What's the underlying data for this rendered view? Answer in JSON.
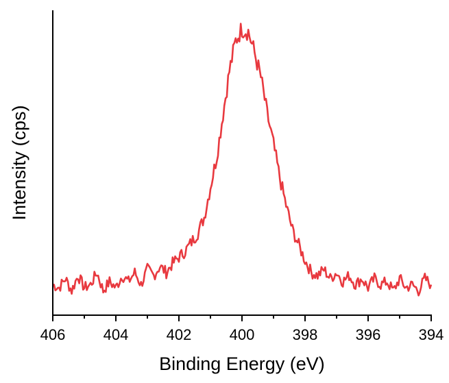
{
  "chart_data": {
    "type": "line",
    "title": "",
    "xlabel": "Binding Energy (eV)",
    "ylabel": "Intensity (cps)",
    "xlim": [
      406,
      394
    ],
    "x_reversed": true,
    "ylim": [
      0,
      1.0
    ],
    "y_tick_labels_visible": false,
    "x_ticks": [
      406,
      404,
      402,
      400,
      398,
      396,
      394
    ],
    "x_tick_labels": [
      "406",
      "404",
      "402",
      "400",
      "398",
      "396",
      "394"
    ],
    "grid": false,
    "legend": "none",
    "series": [
      {
        "color": "#e8393f",
        "x": [
          406.0,
          405.8,
          405.6,
          405.4,
          405.2,
          405.0,
          404.8,
          404.6,
          404.4,
          404.2,
          404.0,
          403.8,
          403.6,
          403.4,
          403.2,
          403.0,
          402.8,
          402.6,
          402.4,
          402.2,
          402.0,
          401.8,
          401.6,
          401.4,
          401.2,
          401.0,
          400.8,
          400.6,
          400.4,
          400.2,
          400.0,
          399.8,
          399.6,
          399.4,
          399.2,
          399.0,
          398.8,
          398.6,
          398.4,
          398.2,
          398.0,
          397.8,
          397.6,
          397.4,
          397.2,
          397.0,
          396.8,
          396.6,
          396.4,
          396.2,
          396.0,
          395.8,
          395.6,
          395.4,
          395.2,
          395.0,
          394.8,
          394.6,
          394.4,
          394.2,
          394.0
        ],
        "y": [
          0.1,
          0.09,
          0.12,
          0.08,
          0.13,
          0.09,
          0.1,
          0.14,
          0.08,
          0.11,
          0.09,
          0.13,
          0.11,
          0.14,
          0.1,
          0.15,
          0.13,
          0.16,
          0.14,
          0.17,
          0.19,
          0.21,
          0.24,
          0.27,
          0.32,
          0.42,
          0.52,
          0.66,
          0.8,
          0.9,
          0.94,
          0.93,
          0.86,
          0.78,
          0.66,
          0.56,
          0.45,
          0.36,
          0.28,
          0.23,
          0.18,
          0.14,
          0.13,
          0.15,
          0.12,
          0.14,
          0.11,
          0.13,
          0.1,
          0.12,
          0.09,
          0.12,
          0.1,
          0.11,
          0.08,
          0.12,
          0.09,
          0.1,
          0.08,
          0.12,
          0.1
        ]
      }
    ]
  }
}
